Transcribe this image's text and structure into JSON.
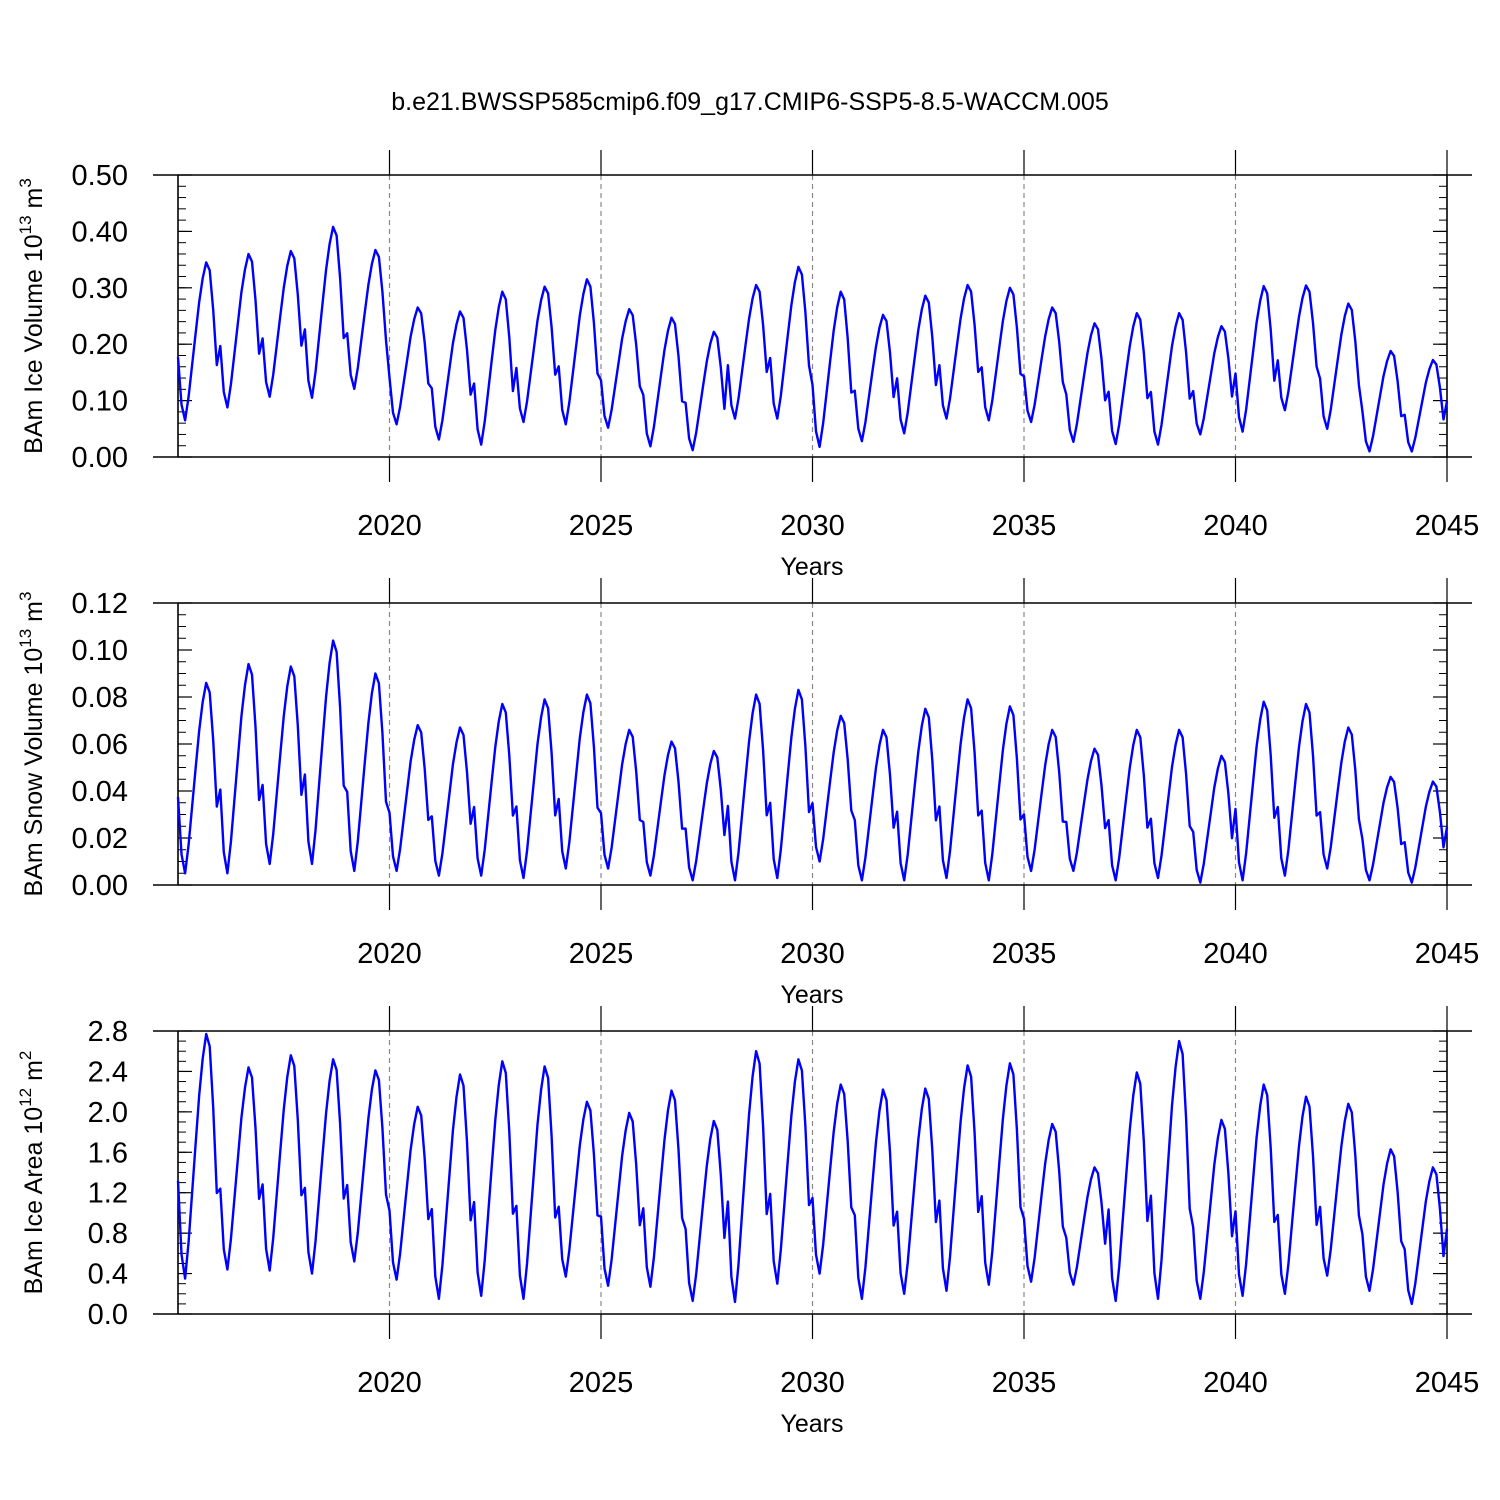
{
  "title": "b.e21.BWSSP585cmip6.f09_g17.CMIP6-SSP5-8.5-WACCM.005",
  "chart_data": [
    {
      "type": "line",
      "title": "b.e21.BWSSP585cmip6.f09_g17.CMIP6-SSP5-8.5-WACCM.005",
      "xlabel": "Years",
      "ylabel": "BAm Ice Volume 10",
      "ylabel_exponent": "13",
      "ylabel_unit": " m",
      "ylabel_unit_exponent": "3",
      "xlim": [
        2015,
        2045
      ],
      "ylim": [
        0,
        0.5
      ],
      "xticks": [
        2020,
        2025,
        2030,
        2035,
        2040,
        2045
      ],
      "xtick_labels": [
        "2020",
        "2025",
        "2030",
        "2035",
        "2040",
        "2045"
      ],
      "yticks": [
        0,
        0.1,
        0.2,
        0.3,
        0.4,
        0.5
      ],
      "ytick_labels": [
        "0.00",
        "0.10",
        "0.20",
        "0.30",
        "0.40",
        "0.50"
      ],
      "y_minor_step": 0.02,
      "grid": "vertical dashed at major x ticks",
      "color": "#0000ff",
      "series": [
        {
          "name": "BAm Ice Volume",
          "annual_min": [
            0.065,
            0.088,
            0.107,
            0.105,
            0.121,
            0.058,
            0.031,
            0.022,
            0.062,
            0.058,
            0.052,
            0.019,
            0.012,
            0.068,
            0.068,
            0.018,
            0.028,
            0.042,
            0.068,
            0.065,
            0.062,
            0.027,
            0.023,
            0.022,
            0.04,
            0.045,
            0.083,
            0.05,
            0.01,
            0.01
          ],
          "annual_max": [
            0.345,
            0.36,
            0.365,
            0.408,
            0.367,
            0.265,
            0.258,
            0.293,
            0.302,
            0.315,
            0.262,
            0.247,
            0.222,
            0.305,
            0.337,
            0.293,
            0.252,
            0.286,
            0.305,
            0.3,
            0.265,
            0.237,
            0.255,
            0.255,
            0.232,
            0.303,
            0.304,
            0.272,
            0.188,
            0.172
          ]
        }
      ]
    },
    {
      "type": "line",
      "xlabel": "Years",
      "ylabel": "BAm Snow Volume 10",
      "ylabel_exponent": "13",
      "ylabel_unit": " m",
      "ylabel_unit_exponent": "3",
      "xlim": [
        2015,
        2045
      ],
      "ylim": [
        0,
        0.12
      ],
      "xticks": [
        2020,
        2025,
        2030,
        2035,
        2040,
        2045
      ],
      "xtick_labels": [
        "2020",
        "2025",
        "2030",
        "2035",
        "2040",
        "2045"
      ],
      "yticks": [
        0,
        0.02,
        0.04,
        0.06,
        0.08,
        0.1,
        0.12
      ],
      "ytick_labels": [
        "0.00",
        "0.02",
        "0.04",
        "0.06",
        "0.08",
        "0.10",
        "0.12"
      ],
      "y_minor_step": 0.005,
      "grid": "vertical dashed at major x ticks",
      "color": "#0000ff",
      "series": [
        {
          "name": "BAm Snow Volume",
          "annual_min": [
            0.005,
            0.005,
            0.009,
            0.009,
            0.006,
            0.006,
            0.004,
            0.004,
            0.003,
            0.007,
            0.007,
            0.004,
            0.002,
            0.002,
            0.003,
            0.01,
            0.002,
            0.002,
            0.003,
            0.002,
            0.006,
            0.006,
            0.002,
            0.003,
            0.001,
            0.002,
            0.004,
            0.007,
            0.002,
            0.001
          ],
          "annual_max": [
            0.086,
            0.094,
            0.093,
            0.104,
            0.09,
            0.068,
            0.067,
            0.077,
            0.079,
            0.081,
            0.066,
            0.061,
            0.057,
            0.081,
            0.083,
            0.072,
            0.066,
            0.075,
            0.079,
            0.076,
            0.066,
            0.058,
            0.066,
            0.066,
            0.055,
            0.078,
            0.077,
            0.067,
            0.046,
            0.044
          ]
        }
      ]
    },
    {
      "type": "line",
      "xlabel": "Years",
      "ylabel": "BAm Ice Area 10",
      "ylabel_exponent": "12",
      "ylabel_unit": " m",
      "ylabel_unit_exponent": "2",
      "xlim": [
        2015,
        2045
      ],
      "ylim": [
        0,
        2.8
      ],
      "xticks": [
        2020,
        2025,
        2030,
        2035,
        2040,
        2045
      ],
      "xtick_labels": [
        "2020",
        "2025",
        "2030",
        "2035",
        "2040",
        "2045"
      ],
      "yticks": [
        0,
        0.4,
        0.8,
        1.2,
        1.6,
        2.0,
        2.4,
        2.8
      ],
      "ytick_labels": [
        "0.0",
        "0.4",
        "0.8",
        "1.2",
        "1.6",
        "2.0",
        "2.4",
        "2.8"
      ],
      "y_minor_step": 0.1,
      "grid": "vertical dashed at major x ticks",
      "color": "#0000ff",
      "series": [
        {
          "name": "BAm Ice Area",
          "annual_min": [
            0.35,
            0.44,
            0.43,
            0.4,
            0.52,
            0.34,
            0.15,
            0.18,
            0.15,
            0.37,
            0.28,
            0.27,
            0.13,
            0.12,
            0.3,
            0.4,
            0.15,
            0.2,
            0.23,
            0.29,
            0.32,
            0.29,
            0.13,
            0.15,
            0.15,
            0.18,
            0.2,
            0.38,
            0.23,
            0.1
          ],
          "annual_max": [
            2.77,
            2.44,
            2.56,
            2.52,
            2.41,
            2.05,
            2.37,
            2.5,
            2.45,
            2.1,
            1.99,
            2.21,
            1.91,
            2.6,
            2.52,
            2.27,
            2.22,
            2.23,
            2.46,
            2.48,
            1.88,
            1.45,
            2.39,
            2.7,
            1.92,
            2.27,
            2.15,
            2.08,
            1.63,
            1.45
          ]
        }
      ]
    }
  ]
}
